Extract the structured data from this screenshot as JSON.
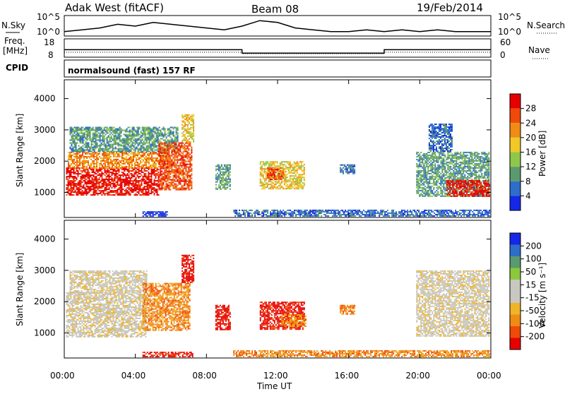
{
  "header": {
    "radar": "Adak West (fitACF)",
    "beam": "Beam 08",
    "date": "19/Feb/2014"
  },
  "noise_panel": {
    "left_label": "N.Sky",
    "right_label": "N.Search",
    "left_ticks": [
      "10^5",
      "10^0"
    ],
    "right_ticks": [
      "10^5",
      "10^0"
    ]
  },
  "freq_panel": {
    "left_label_line1": "Freq.",
    "left_label_line2": "[MHz]",
    "right_label": "Nave",
    "left_ticks": [
      "18",
      "8"
    ],
    "right_ticks": [
      "60",
      "0"
    ]
  },
  "cpid": {
    "label": "CPID",
    "value": "normalsound (fast) 157 RF"
  },
  "power_panel": {
    "ylabel": "Slant Range [km]",
    "colorbar_label": "Power [dB]",
    "colorbar_ticks": [
      "28",
      "24",
      "20",
      "16",
      "12",
      "8",
      "4"
    ]
  },
  "velocity_panel": {
    "ylabel": "Slant Range [km]",
    "colorbar_label": "Velocity [m s⁻¹]",
    "colorbar_ticks": [
      "200",
      "100",
      "50",
      "15",
      "-15",
      "-50",
      "-100",
      "-200"
    ]
  },
  "xaxis": {
    "label": "Time UT",
    "ticks": [
      "00:00",
      "04:00",
      "08:00",
      "12:00",
      "16:00",
      "20:00",
      "00:00"
    ]
  },
  "colors": {
    "power_scale": [
      "#1428e6",
      "#2c6ec8",
      "#5a9a6e",
      "#8ec84a",
      "#f0c828",
      "#f08c14",
      "#f04a0a",
      "#e60000"
    ],
    "velocity_scale": [
      "#e60000",
      "#f04a0a",
      "#f08c14",
      "#f0b428",
      "#c8c8c0",
      "#c8c8c0",
      "#8cc83c",
      "#5a9a6e",
      "#2c6ec8",
      "#1428e6"
    ]
  },
  "chart_data": [
    {
      "type": "line",
      "panel": "noise",
      "x": [
        0,
        1,
        2,
        3,
        4,
        5,
        6,
        7,
        8,
        9,
        10,
        11,
        12,
        13,
        14,
        15,
        16,
        17,
        18,
        19,
        20,
        21,
        22,
        23,
        24
      ],
      "series": [
        {
          "values": [
            1.2,
            1.3,
            1.4,
            1.6,
            1.5,
            1.7,
            1.6,
            1.5,
            1.4,
            1.3,
            1.5,
            1.8,
            1.7,
            1.4,
            1.3,
            1.2,
            1.2,
            1.3,
            1.2,
            1.3,
            1.2,
            1.3,
            1.2,
            1.2,
            1.2
          ]
        }
      ]
    },
    {
      "type": "line",
      "panel": "frequency",
      "x": [
        0,
        10,
        10,
        18,
        18,
        24
      ],
      "series": [
        {
          "values": [
            12,
            12,
            10,
            10,
            12,
            12
          ]
        }
      ]
    },
    {
      "type": "heatmap",
      "panel": "power",
      "x_unit": "hours UT",
      "y_unit": "km",
      "xlim": [
        0,
        24
      ],
      "ylim": [
        200,
        4600
      ],
      "regions": [
        {
          "t0": 0.1,
          "t1": 5.3,
          "r0": 900,
          "r1": 1800,
          "level": 28
        },
        {
          "t0": 0.2,
          "t1": 5.8,
          "r0": 1800,
          "r1": 2300,
          "level": 20
        },
        {
          "t0": 0.3,
          "t1": 6.4,
          "r0": 2300,
          "r1": 3100,
          "level": 12
        },
        {
          "t0": 5.3,
          "t1": 7.2,
          "r0": 1100,
          "r1": 2600,
          "level": 24
        },
        {
          "t0": 6.6,
          "t1": 7.3,
          "r0": 2600,
          "r1": 3500,
          "level": 16
        },
        {
          "t0": 8.5,
          "t1": 9.3,
          "r0": 1100,
          "r1": 1900,
          "level": 12
        },
        {
          "t0": 11.0,
          "t1": 13.5,
          "r0": 1100,
          "r1": 2000,
          "level": 16
        },
        {
          "t0": 11.4,
          "t1": 12.3,
          "r0": 1400,
          "r1": 1800,
          "level": 24
        },
        {
          "t0": 15.5,
          "t1": 16.3,
          "r0": 1600,
          "r1": 1900,
          "level": 8
        },
        {
          "t0": 19.8,
          "t1": 23.9,
          "r0": 900,
          "r1": 2300,
          "level": 12
        },
        {
          "t0": 21.5,
          "t1": 23.9,
          "r0": 900,
          "r1": 1400,
          "level": 28
        },
        {
          "t0": 20.5,
          "t1": 21.8,
          "r0": 2300,
          "r1": 3200,
          "level": 8
        },
        {
          "t0": 4.4,
          "t1": 5.8,
          "r0": 250,
          "r1": 400,
          "level": 4
        },
        {
          "t0": 9.5,
          "t1": 23.9,
          "r0": 250,
          "r1": 450,
          "level": 8
        }
      ]
    },
    {
      "type": "heatmap",
      "panel": "velocity",
      "x_unit": "hours UT",
      "y_unit": "km",
      "xlim": [
        0,
        24
      ],
      "ylim": [
        200,
        4600
      ],
      "regions": [
        {
          "t0": 0.1,
          "t1": 4.6,
          "r0": 900,
          "r1": 2300,
          "level": 0
        },
        {
          "t0": 0.3,
          "t1": 4.6,
          "r0": 2300,
          "r1": 3000,
          "level": 0
        },
        {
          "t0": 4.4,
          "t1": 7.1,
          "r0": 1100,
          "r1": 2600,
          "level": -50
        },
        {
          "t0": 6.6,
          "t1": 7.3,
          "r0": 2600,
          "r1": 3500,
          "level": -200
        },
        {
          "t0": 8.5,
          "t1": 9.3,
          "r0": 1100,
          "r1": 1900,
          "level": -200
        },
        {
          "t0": 11.0,
          "t1": 13.5,
          "r0": 1100,
          "r1": 2000,
          "level": -200
        },
        {
          "t0": 12.2,
          "t1": 13.6,
          "r0": 1200,
          "r1": 1600,
          "level": -50
        },
        {
          "t0": 15.5,
          "t1": 16.3,
          "r0": 1600,
          "r1": 1900,
          "level": -50
        },
        {
          "t0": 19.8,
          "t1": 23.9,
          "r0": 900,
          "r1": 3000,
          "level": 0
        },
        {
          "t0": 4.4,
          "t1": 7.2,
          "r0": 250,
          "r1": 400,
          "level": -200
        },
        {
          "t0": 9.5,
          "t1": 23.9,
          "r0": 250,
          "r1": 450,
          "level": -50
        }
      ]
    }
  ]
}
